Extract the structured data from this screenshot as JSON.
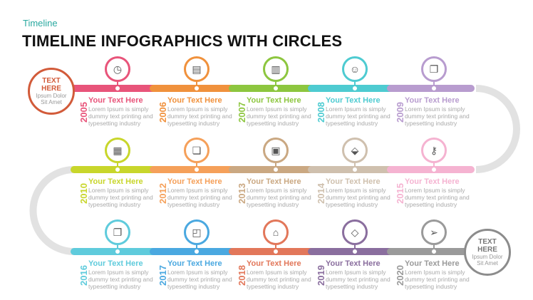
{
  "header": {
    "subtitle": "Timeline",
    "title": "TIMELINE INFOGRAPHICS WITH CIRCLES"
  },
  "start": {
    "title_line1": "TEXT",
    "title_line2": "HERE",
    "sub_line1": "Ipsum Dolor",
    "sub_line2": "Sit Amet",
    "color": "#d25b3a"
  },
  "end": {
    "title_line1": "TEXT",
    "title_line2": "HERE",
    "sub_line1": "Ipsum Dolor",
    "sub_line2": "Sit Amet",
    "color": "#8c8c8c"
  },
  "rows": [
    [
      {
        "year": "2005",
        "heading": "Your Text Here",
        "desc": "Lorem Ipsum is simply dummy text printing and typesetting industry",
        "color": "#e8547a",
        "icon": "clock-icon",
        "glyph": "◷"
      },
      {
        "year": "2006",
        "heading": "Your Text Here",
        "desc": "Lorem Ipsum is simply dummy text printing and typesetting industry",
        "color": "#f0913c",
        "icon": "document-icon",
        "glyph": "▤"
      },
      {
        "year": "2007",
        "heading": "Your Text Here",
        "desc": "Lorem Ipsum is simply dummy text printing and typesetting industry",
        "color": "#8dc63f",
        "icon": "bar-chart-icon",
        "glyph": "▥"
      },
      {
        "year": "2008",
        "heading": "Your Text Here",
        "desc": "Lorem Ipsum is simply dummy text printing and typesetting industry",
        "color": "#4ecbd1",
        "icon": "users-icon",
        "glyph": "☺"
      },
      {
        "year": "2009",
        "heading": "Your Text Here",
        "desc": "Lorem Ipsum is simply dummy text printing and typesetting industry",
        "color": "#b89ccf",
        "icon": "files-icon",
        "glyph": "❐"
      }
    ],
    [
      {
        "year": "2010",
        "heading": "Your Text Here",
        "desc": "Lorem Ipsum is simply dummy text printing and typesetting industry",
        "color": "#c8d62b",
        "icon": "map-icon",
        "glyph": "▦"
      },
      {
        "year": "2012",
        "heading": "Your Text Here",
        "desc": "Lorem Ipsum is simply dummy text printing and typesetting industry",
        "color": "#f5a05a",
        "icon": "copy-icon",
        "glyph": "❏"
      },
      {
        "year": "2013",
        "heading": "Your Text Here",
        "desc": "Lorem Ipsum is simply dummy text printing and typesetting industry",
        "color": "#caa882",
        "icon": "gallery-icon",
        "glyph": "▣"
      },
      {
        "year": "2014",
        "heading": "Your Text Here",
        "desc": "Lorem Ipsum is simply dummy text printing and typesetting industry",
        "color": "#cfc0ae",
        "icon": "tags-icon",
        "glyph": "⬙"
      },
      {
        "year": "2015",
        "heading": "Your Text Here",
        "desc": "Lorem Ipsum is simply dummy text printing and typesetting industry",
        "color": "#f5b3d1",
        "icon": "key-icon",
        "glyph": "⚷"
      }
    ],
    [
      {
        "year": "2016",
        "heading": "Your Text Here",
        "desc": "Lorem Ipsum is simply dummy text printing and typesetting industry",
        "color": "#5fcbdc",
        "icon": "copy-icon",
        "glyph": "❐"
      },
      {
        "year": "2017",
        "heading": "Your Text Here",
        "desc": "Lorem Ipsum is simply dummy text printing and typesetting industry",
        "color": "#4aa8e0",
        "icon": "briefcase-icon",
        "glyph": "◰"
      },
      {
        "year": "2018",
        "heading": "Your Text Here",
        "desc": "Lorem Ipsum is simply dummy text printing and typesetting industry",
        "color": "#e2775a",
        "icon": "bank-icon",
        "glyph": "⌂"
      },
      {
        "year": "2019",
        "heading": "Your Text Here",
        "desc": "Lorem Ipsum is simply dummy text printing and typesetting industry",
        "color": "#8a6e9e",
        "icon": "diamond-icon",
        "glyph": "◇"
      },
      {
        "year": "2020",
        "heading": "Your Text Here",
        "desc": "Lorem Ipsum is simply dummy text printing and typesetting industry",
        "color": "#9a9a9a",
        "icon": "paper-plane-icon",
        "glyph": "➢"
      }
    ]
  ]
}
